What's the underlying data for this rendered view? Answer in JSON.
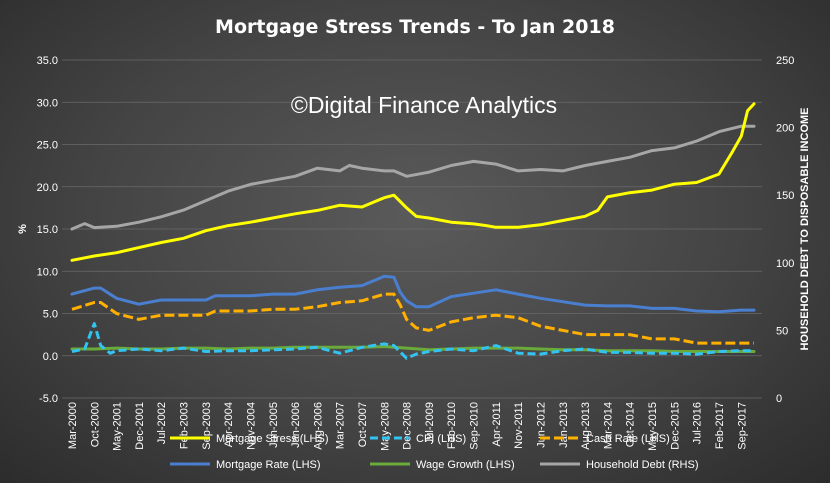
{
  "chart_data": {
    "type": "line",
    "title": "Mortgage Stress Trends - To Jan 2018",
    "watermark": "©Digital Finance Analytics",
    "ylabel_left": "%",
    "ylabel_right": "HOUSEHOLD DEBT TO DISPOSABLE INCOME",
    "ylim_left": [
      -5,
      35
    ],
    "ylim_right": [
      0,
      250
    ],
    "yticks_left": [
      "-5.0",
      "0.0",
      "5.0",
      "10.0",
      "15.0",
      "20.0",
      "25.0",
      "30.0",
      "35.0"
    ],
    "yticks_right": [
      "0",
      "50",
      "100",
      "150",
      "200",
      "250"
    ],
    "x_tick_labels": [
      "Mar-2000",
      "Oct-2000",
      "May-2001",
      "Dec-2001",
      "Jul-2002",
      "Feb-2003",
      "Sep-2003",
      "Apr-2004",
      "Nov-2004",
      "Jun-2005",
      "Jan-2006",
      "Aug-2006",
      "Mar-2007",
      "Oct-2007",
      "May-2008",
      "Dec-2008",
      "Jul-2009",
      "Feb-2010",
      "Sep-2010",
      "Apr-2011",
      "Nov-2011",
      "Jun-2012",
      "Jan-2013",
      "Aug-2013",
      "Mar-2014",
      "Oct-2014",
      "May-2015",
      "Dec-2015",
      "Jul-2016",
      "Feb-2017",
      "Sep-2017"
    ],
    "x_start": "Mar-2000",
    "x_end": "Jan-2018",
    "legend_position": "bottom",
    "grid": true,
    "series": [
      {
        "name": "Mortgage Stress (LHS)",
        "axis": "left",
        "color": "#ffff00",
        "dash": "solid",
        "points": [
          [
            "Mar-2000",
            11.3
          ],
          [
            "Oct-2000",
            11.8
          ],
          [
            "May-2001",
            12.2
          ],
          [
            "Dec-2001",
            12.8
          ],
          [
            "Jul-2002",
            13.4
          ],
          [
            "Feb-2003",
            13.9
          ],
          [
            "Sep-2003",
            14.8
          ],
          [
            "Apr-2004",
            15.4
          ],
          [
            "Nov-2004",
            15.8
          ],
          [
            "Jun-2005",
            16.3
          ],
          [
            "Jan-2006",
            16.8
          ],
          [
            "Aug-2006",
            17.2
          ],
          [
            "Mar-2007",
            17.8
          ],
          [
            "Oct-2007",
            17.6
          ],
          [
            "May-2008",
            18.7
          ],
          [
            "Aug-2008",
            19.0
          ],
          [
            "Dec-2008",
            17.5
          ],
          [
            "Mar-2009",
            16.5
          ],
          [
            "Jul-2009",
            16.3
          ],
          [
            "Feb-2010",
            15.8
          ],
          [
            "Sep-2010",
            15.6
          ],
          [
            "Jan-2011",
            15.4
          ],
          [
            "Apr-2011",
            15.2
          ],
          [
            "Nov-2011",
            15.2
          ],
          [
            "Jun-2012",
            15.5
          ],
          [
            "Jan-2013",
            16.0
          ],
          [
            "Aug-2013",
            16.5
          ],
          [
            "Dec-2013",
            17.2
          ],
          [
            "Mar-2014",
            18.8
          ],
          [
            "Oct-2014",
            19.3
          ],
          [
            "May-2015",
            19.6
          ],
          [
            "Dec-2015",
            20.3
          ],
          [
            "Jul-2016",
            20.5
          ],
          [
            "Feb-2017",
            21.5
          ],
          [
            "Jun-2017",
            24.0
          ],
          [
            "Sep-2017",
            26.0
          ],
          [
            "Nov-2017",
            29.0
          ],
          [
            "Jan-2018",
            29.8
          ]
        ]
      },
      {
        "name": "CPI (LHS)",
        "axis": "left",
        "color": "#33c3f0",
        "dash": "8,4",
        "points": [
          [
            "Mar-2000",
            0.5
          ],
          [
            "Jul-2000",
            0.8
          ],
          [
            "Oct-2000",
            3.8
          ],
          [
            "Dec-2000",
            1.2
          ],
          [
            "Mar-2001",
            0.3
          ],
          [
            "May-2001",
            0.6
          ],
          [
            "Dec-2001",
            0.8
          ],
          [
            "Jul-2002",
            0.6
          ],
          [
            "Feb-2003",
            0.9
          ],
          [
            "Sep-2003",
            0.5
          ],
          [
            "Apr-2004",
            0.6
          ],
          [
            "Nov-2004",
            0.6
          ],
          [
            "Jun-2005",
            0.7
          ],
          [
            "Jan-2006",
            0.8
          ],
          [
            "Aug-2006",
            1.0
          ],
          [
            "Mar-2007",
            0.3
          ],
          [
            "Oct-2007",
            1.0
          ],
          [
            "May-2008",
            1.4
          ],
          [
            "Aug-2008",
            1.2
          ],
          [
            "Dec-2008",
            -0.3
          ],
          [
            "Mar-2009",
            0.2
          ],
          [
            "Jul-2009",
            0.5
          ],
          [
            "Feb-2010",
            0.8
          ],
          [
            "Sep-2010",
            0.6
          ],
          [
            "Apr-2011",
            1.2
          ],
          [
            "Nov-2011",
            0.3
          ],
          [
            "Jun-2012",
            0.2
          ],
          [
            "Jan-2013",
            0.6
          ],
          [
            "Aug-2013",
            0.8
          ],
          [
            "Mar-2014",
            0.4
          ],
          [
            "Oct-2014",
            0.4
          ],
          [
            "May-2015",
            0.3
          ],
          [
            "Dec-2015",
            0.3
          ],
          [
            "Jul-2016",
            0.2
          ],
          [
            "Feb-2017",
            0.5
          ],
          [
            "Sep-2017",
            0.6
          ],
          [
            "Jan-2018",
            0.6
          ]
        ]
      },
      {
        "name": "Cash Rate (LHS)",
        "axis": "left",
        "color": "#ffb000",
        "dash": "10,4",
        "points": [
          [
            "Mar-2000",
            5.5
          ],
          [
            "Oct-2000",
            6.3
          ],
          [
            "Dec-2000",
            6.3
          ],
          [
            "May-2001",
            5.0
          ],
          [
            "Dec-2001",
            4.3
          ],
          [
            "Jul-2002",
            4.8
          ],
          [
            "Feb-2003",
            4.8
          ],
          [
            "Sep-2003",
            4.8
          ],
          [
            "Dec-2003",
            5.3
          ],
          [
            "Apr-2004",
            5.3
          ],
          [
            "Nov-2004",
            5.3
          ],
          [
            "Jun-2005",
            5.5
          ],
          [
            "Jan-2006",
            5.5
          ],
          [
            "Aug-2006",
            5.8
          ],
          [
            "Mar-2007",
            6.3
          ],
          [
            "Oct-2007",
            6.5
          ],
          [
            "May-2008",
            7.3
          ],
          [
            "Aug-2008",
            7.3
          ],
          [
            "Oct-2008",
            6.0
          ],
          [
            "Dec-2008",
            4.3
          ],
          [
            "Mar-2009",
            3.3
          ],
          [
            "Jul-2009",
            3.0
          ],
          [
            "Feb-2010",
            4.0
          ],
          [
            "Sep-2010",
            4.5
          ],
          [
            "Apr-2011",
            4.8
          ],
          [
            "Nov-2011",
            4.5
          ],
          [
            "Jun-2012",
            3.5
          ],
          [
            "Jan-2013",
            3.0
          ],
          [
            "Aug-2013",
            2.5
          ],
          [
            "Mar-2014",
            2.5
          ],
          [
            "Oct-2014",
            2.5
          ],
          [
            "May-2015",
            2.0
          ],
          [
            "Dec-2015",
            2.0
          ],
          [
            "Jul-2016",
            1.5
          ],
          [
            "Feb-2017",
            1.5
          ],
          [
            "Sep-2017",
            1.5
          ],
          [
            "Jan-2018",
            1.5
          ]
        ]
      },
      {
        "name": "Mortgage Rate (LHS)",
        "axis": "left",
        "color": "#4a7fd0",
        "dash": "solid",
        "points": [
          [
            "Mar-2000",
            7.3
          ],
          [
            "Oct-2000",
            8.0
          ],
          [
            "Dec-2000",
            8.0
          ],
          [
            "May-2001",
            6.8
          ],
          [
            "Dec-2001",
            6.1
          ],
          [
            "Jul-2002",
            6.6
          ],
          [
            "Feb-2003",
            6.6
          ],
          [
            "Sep-2003",
            6.6
          ],
          [
            "Dec-2003",
            7.1
          ],
          [
            "Apr-2004",
            7.1
          ],
          [
            "Nov-2004",
            7.1
          ],
          [
            "Jun-2005",
            7.3
          ],
          [
            "Jan-2006",
            7.3
          ],
          [
            "Aug-2006",
            7.8
          ],
          [
            "Mar-2007",
            8.1
          ],
          [
            "Oct-2007",
            8.3
          ],
          [
            "May-2008",
            9.4
          ],
          [
            "Aug-2008",
            9.3
          ],
          [
            "Oct-2008",
            7.5
          ],
          [
            "Dec-2008",
            6.5
          ],
          [
            "Mar-2009",
            5.8
          ],
          [
            "Jul-2009",
            5.8
          ],
          [
            "Feb-2010",
            7.0
          ],
          [
            "Sep-2010",
            7.4
          ],
          [
            "Apr-2011",
            7.8
          ],
          [
            "Nov-2011",
            7.3
          ],
          [
            "Jun-2012",
            6.8
          ],
          [
            "Jan-2013",
            6.4
          ],
          [
            "Aug-2013",
            6.0
          ],
          [
            "Mar-2014",
            5.9
          ],
          [
            "Oct-2014",
            5.9
          ],
          [
            "May-2015",
            5.6
          ],
          [
            "Dec-2015",
            5.6
          ],
          [
            "Jul-2016",
            5.3
          ],
          [
            "Feb-2017",
            5.2
          ],
          [
            "Sep-2017",
            5.4
          ],
          [
            "Jan-2018",
            5.4
          ]
        ]
      },
      {
        "name": "Wage Growth (LHS)",
        "axis": "left",
        "color": "#6aaa3a",
        "dash": "solid",
        "points": [
          [
            "Mar-2000",
            0.8
          ],
          [
            "Oct-2000",
            0.8
          ],
          [
            "May-2001",
            0.9
          ],
          [
            "Dec-2001",
            0.8
          ],
          [
            "Jul-2002",
            0.8
          ],
          [
            "Feb-2003",
            0.9
          ],
          [
            "Sep-2003",
            0.9
          ],
          [
            "Apr-2004",
            0.8
          ],
          [
            "Nov-2004",
            0.9
          ],
          [
            "Jun-2005",
            0.9
          ],
          [
            "Jan-2006",
            1.0
          ],
          [
            "Aug-2006",
            1.0
          ],
          [
            "Mar-2007",
            1.0
          ],
          [
            "Oct-2007",
            1.0
          ],
          [
            "May-2008",
            1.1
          ],
          [
            "Dec-2008",
            0.9
          ],
          [
            "Jul-2009",
            0.7
          ],
          [
            "Feb-2010",
            0.8
          ],
          [
            "Sep-2010",
            0.9
          ],
          [
            "Apr-2011",
            0.9
          ],
          [
            "Nov-2011",
            0.9
          ],
          [
            "Jun-2012",
            0.8
          ],
          [
            "Jan-2013",
            0.7
          ],
          [
            "Aug-2013",
            0.7
          ],
          [
            "Mar-2014",
            0.6
          ],
          [
            "Oct-2014",
            0.6
          ],
          [
            "May-2015",
            0.6
          ],
          [
            "Dec-2015",
            0.5
          ],
          [
            "Jul-2016",
            0.5
          ],
          [
            "Feb-2017",
            0.5
          ],
          [
            "Sep-2017",
            0.5
          ],
          [
            "Jan-2018",
            0.5
          ]
        ]
      },
      {
        "name": "Household Debt (RHS)",
        "axis": "right",
        "color": "#a6a6a6",
        "dash": "solid",
        "points": [
          [
            "Mar-2000",
            125
          ],
          [
            "Jul-2000",
            129
          ],
          [
            "Oct-2000",
            126
          ],
          [
            "May-2001",
            127
          ],
          [
            "Dec-2001",
            130
          ],
          [
            "Jul-2002",
            134
          ],
          [
            "Feb-2003",
            139
          ],
          [
            "Sep-2003",
            146
          ],
          [
            "Apr-2004",
            153
          ],
          [
            "Nov-2004",
            158
          ],
          [
            "Jun-2005",
            161
          ],
          [
            "Jan-2006",
            164
          ],
          [
            "Aug-2006",
            170
          ],
          [
            "Mar-2007",
            168
          ],
          [
            "Jun-2007",
            172
          ],
          [
            "Oct-2007",
            170
          ],
          [
            "May-2008",
            168
          ],
          [
            "Aug-2008",
            168
          ],
          [
            "Dec-2008",
            164
          ],
          [
            "Jul-2009",
            167
          ],
          [
            "Feb-2010",
            172
          ],
          [
            "Sep-2010",
            175
          ],
          [
            "Apr-2011",
            173
          ],
          [
            "Nov-2011",
            168
          ],
          [
            "Jun-2012",
            169
          ],
          [
            "Jan-2013",
            168
          ],
          [
            "Aug-2013",
            172
          ],
          [
            "Mar-2014",
            175
          ],
          [
            "Oct-2014",
            178
          ],
          [
            "May-2015",
            183
          ],
          [
            "Dec-2015",
            185
          ],
          [
            "Jul-2016",
            190
          ],
          [
            "Feb-2017",
            197
          ],
          [
            "Sep-2017",
            201
          ],
          [
            "Jan-2018",
            201
          ]
        ]
      }
    ]
  }
}
